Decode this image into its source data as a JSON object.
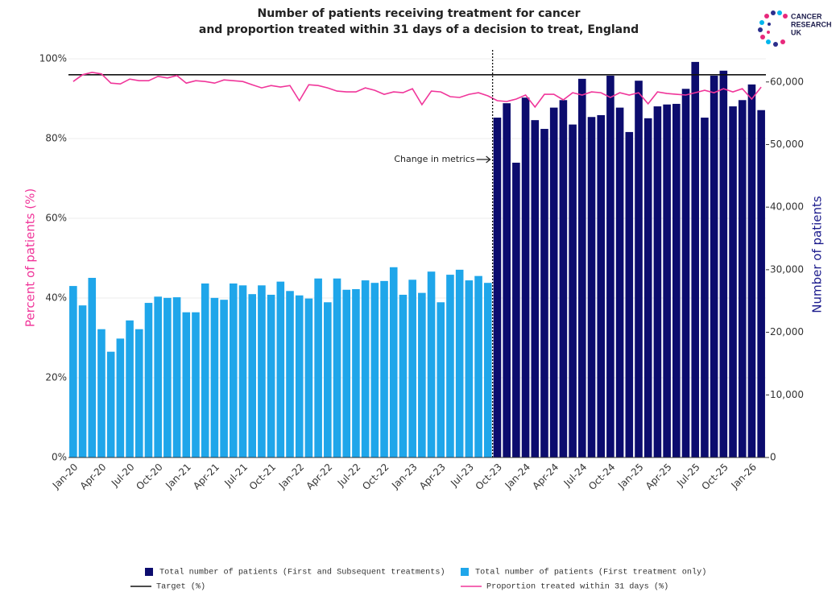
{
  "chart_data": {
    "type": "bar-line",
    "title": [
      "Number of patients receiving treatment for cancer",
      "and proportion treated within 31 days of a decision to treat, England"
    ],
    "logo": [
      "CANCER",
      "RESEARCH",
      "UK"
    ],
    "ylabel": "Percent of patients (%)",
    "y2label": "Number of patients",
    "annotation": "Change in metrics",
    "categories": [
      "Jan-20",
      null,
      null,
      "Apr-20",
      null,
      null,
      "Jul-20",
      null,
      null,
      "Oct-20",
      null,
      null,
      "Jan-21",
      null,
      null,
      "Apr-21",
      null,
      null,
      "Jul-21",
      null,
      null,
      "Oct-21",
      null,
      null,
      "Jan-22",
      null,
      null,
      "Apr-22",
      null,
      null,
      "Jul-22",
      null,
      null,
      "Oct-22",
      null,
      null,
      "Jan-23",
      null,
      null,
      "Apr-23",
      null,
      null,
      "Jul-23",
      null,
      null,
      "Oct-23",
      null,
      null,
      "Jan-24",
      null,
      null,
      "Apr-24",
      null,
      null,
      "Jul-24",
      null,
      null,
      "Oct-24",
      null,
      null,
      "Jan-25",
      null,
      null,
      "Apr-25",
      null,
      null,
      "Jul-25",
      null,
      null,
      "Oct-25",
      null,
      null,
      "Jan-26",
      null
    ],
    "ylim": [
      0,
      100
    ],
    "yticks": [
      {
        "value": 0,
        "label": "0%"
      },
      {
        "value": 20,
        "label": "20%"
      },
      {
        "value": 40,
        "label": "40%"
      },
      {
        "value": 60,
        "label": "60%"
      },
      {
        "value": 80,
        "label": "80%"
      },
      {
        "value": 100,
        "label": "100%"
      }
    ],
    "y2lim": [
      0,
      63700
    ],
    "y2ticks": [
      0,
      {
        "value": 10000,
        "label": "10,000"
      },
      {
        "value": 20000,
        "label": "20,000"
      },
      {
        "value": 30000,
        "label": "30,000"
      },
      {
        "value": 40000,
        "label": "40,000"
      },
      {
        "value": 50000,
        "label": "50,000"
      },
      {
        "value": 60000,
        "label": "60,000"
      }
    ],
    "grid": true,
    "series": [
      {
        "name": "Total number of patients (First and Subsequent treatments)",
        "kind": "bar",
        "axis": "y2",
        "color": "#0c0c6e",
        "values": [
          null,
          null,
          null,
          null,
          null,
          null,
          null,
          null,
          null,
          null,
          null,
          null,
          null,
          null,
          null,
          null,
          null,
          null,
          null,
          null,
          null,
          null,
          null,
          null,
          null,
          null,
          null,
          null,
          null,
          null,
          null,
          null,
          null,
          null,
          null,
          null,
          null,
          null,
          null,
          null,
          null,
          null,
          null,
          null,
          null,
          54300,
          56600,
          47100,
          57500,
          53900,
          52500,
          55900,
          57100,
          53200,
          60500,
          54400,
          54700,
          61000,
          55900,
          52000,
          60200,
          54200,
          56100,
          56400,
          56500,
          58900,
          63200,
          54300,
          61000,
          61800,
          56100,
          57100,
          59600,
          55500
        ]
      },
      {
        "name": "Total number of patients (First treatment only)",
        "kind": "bar",
        "axis": "y2",
        "color": "#1fa6ea",
        "values": [
          27400,
          24300,
          28700,
          20500,
          16900,
          19000,
          21900,
          20500,
          24700,
          25700,
          25500,
          25600,
          23200,
          23200,
          27800,
          25500,
          25200,
          27800,
          27500,
          26100,
          27500,
          26000,
          28100,
          26600,
          25900,
          25400,
          28600,
          24800,
          28600,
          26800,
          26900,
          28300,
          27900,
          28200,
          30400,
          26000,
          28400,
          26300,
          29700,
          24800,
          29200,
          30000,
          28300,
          29000,
          27900,
          null,
          null,
          null,
          null,
          null,
          null,
          null,
          null,
          null,
          null,
          null,
          null,
          null,
          null,
          null,
          null,
          null,
          null,
          null,
          null,
          null,
          null,
          null,
          null,
          null,
          null,
          null,
          null,
          null
        ]
      },
      {
        "name": "Target (%)",
        "kind": "hline",
        "color": "#111111",
        "value": 96
      },
      {
        "name": "Proportion treated within 31 days (%)",
        "kind": "line",
        "color": "#f0369a",
        "values": [
          94.3,
          96.0,
          96.6,
          96.2,
          93.9,
          93.7,
          94.9,
          94.5,
          94.5,
          95.6,
          95.2,
          95.8,
          93.9,
          94.5,
          94.3,
          93.9,
          94.7,
          94.5,
          94.3,
          93.5,
          92.7,
          93.3,
          92.9,
          93.3,
          89.5,
          93.5,
          93.3,
          92.7,
          91.9,
          91.7,
          91.7,
          92.7,
          92.1,
          91.1,
          91.7,
          91.5,
          92.5,
          88.5,
          91.9,
          91.7,
          90.5,
          90.3,
          91.1,
          91.5,
          90.7,
          89.5,
          89.3,
          89.9,
          90.9,
          87.9,
          91.1,
          91.1,
          89.7,
          91.5,
          90.9,
          91.7,
          91.5,
          90.3,
          91.5,
          90.9,
          91.5,
          88.7,
          91.7,
          91.3,
          91.1,
          90.9,
          91.5,
          92.1,
          91.5,
          92.5,
          91.7,
          92.5,
          89.9,
          92.9
        ]
      }
    ]
  }
}
